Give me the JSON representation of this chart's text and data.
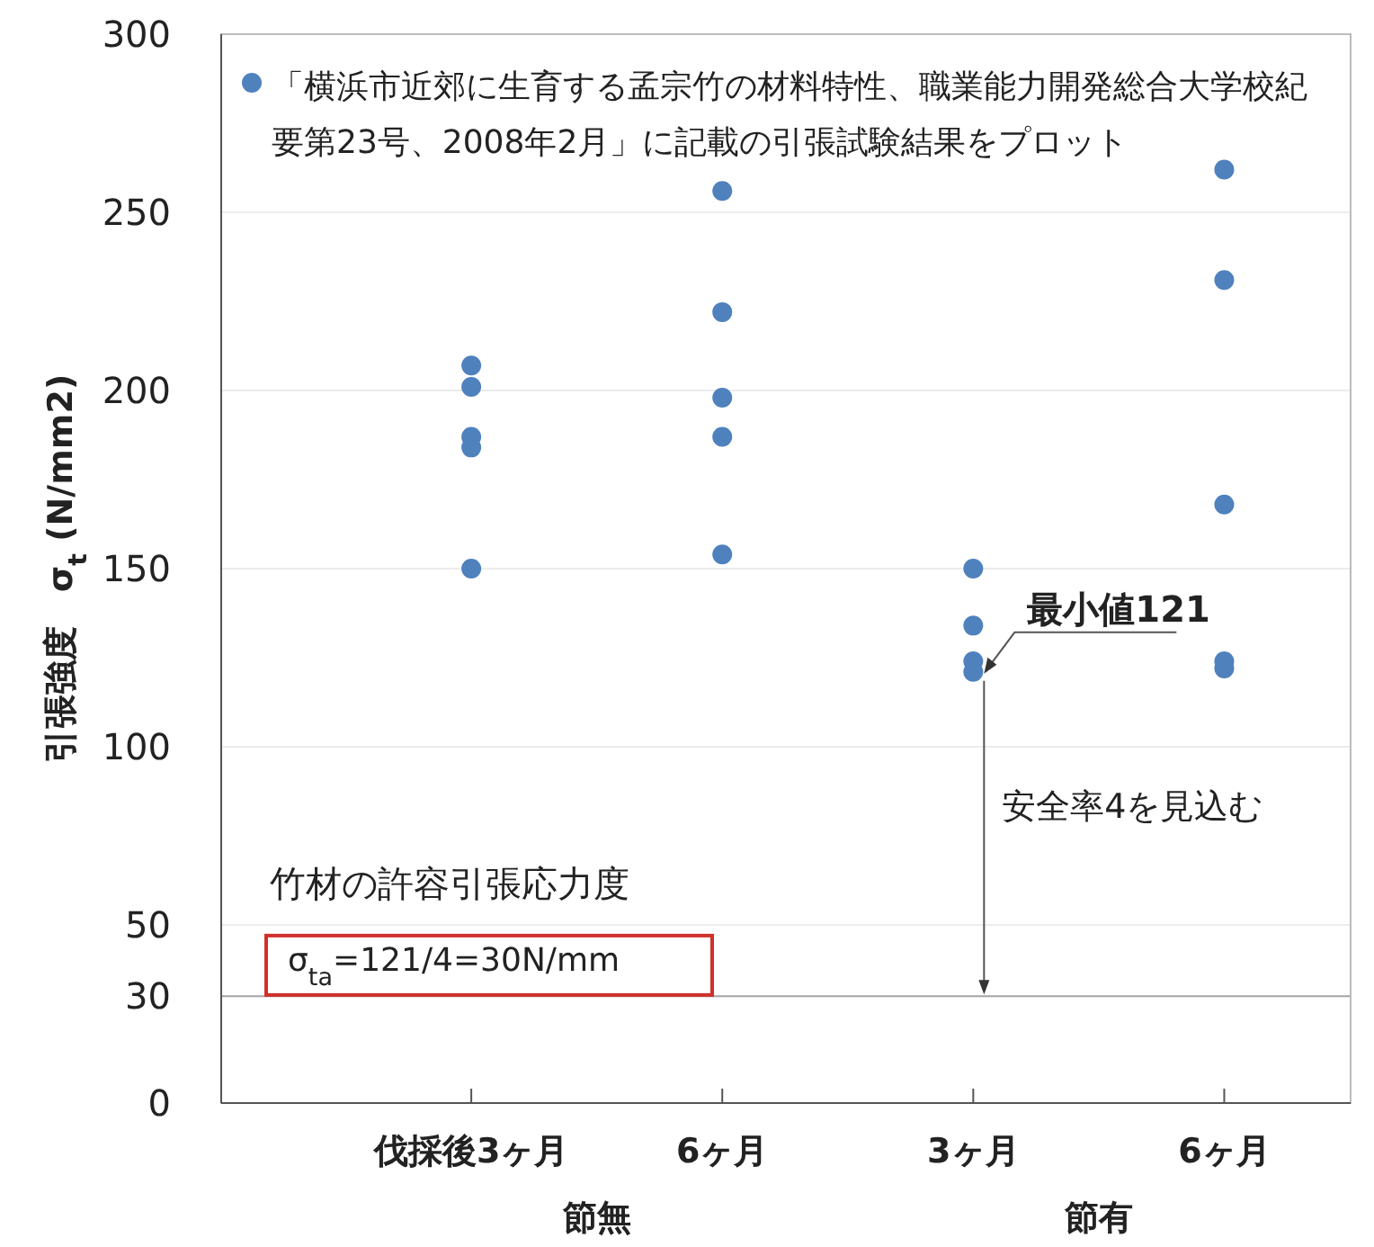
{
  "chart_data": {
    "type": "scatter",
    "ylabel": "引張強度　σ$_{t}$ (N/mm2)",
    "categories": [
      "伐採後3ヶ月",
      "6ヶ月",
      "3ヶ月",
      "6ヶ月"
    ],
    "series": [
      {
        "name": "「横浜市近郊に生育する孟宗竹の材料特性、職業能力開発総合大学校紀要第23号、2008年2月」に記載の引張試験結果をプロット",
        "color": "#4f81bd",
        "values": [
          207,
          256,
          150,
          262
        ]
      },
      {
        "color": "#4f81bd",
        "values": [
          201,
          222,
          134,
          231
        ]
      },
      {
        "color": "#4f81bd",
        "values": [
          187,
          198,
          124,
          168
        ]
      },
      {
        "color": "#4f81bd",
        "values": [
          184,
          187,
          121,
          124
        ]
      },
      {
        "color": "#4f81bd",
        "values": [
          150,
          154,
          null,
          122
        ]
      }
    ],
    "ylim": [
      0,
      300
    ],
    "yticks": [
      0,
      30,
      50,
      100,
      150,
      200,
      250,
      300
    ],
    "grid": "y",
    "legend": "top left",
    "marker": "circle",
    "ref_lines": [
      {
        "axis": "y",
        "value": 30,
        "color": "#a6a6a6"
      }
    ],
    "annotations": [
      {
        "text": "最小値121",
        "x": "3ヶ月",
        "y": 121
      },
      "安全率4を見込む",
      "竹材の許容引張応力度",
      "σ$_{ta}$=121/4=30N/mm",
      "節無",
      "節有"
    ]
  }
}
